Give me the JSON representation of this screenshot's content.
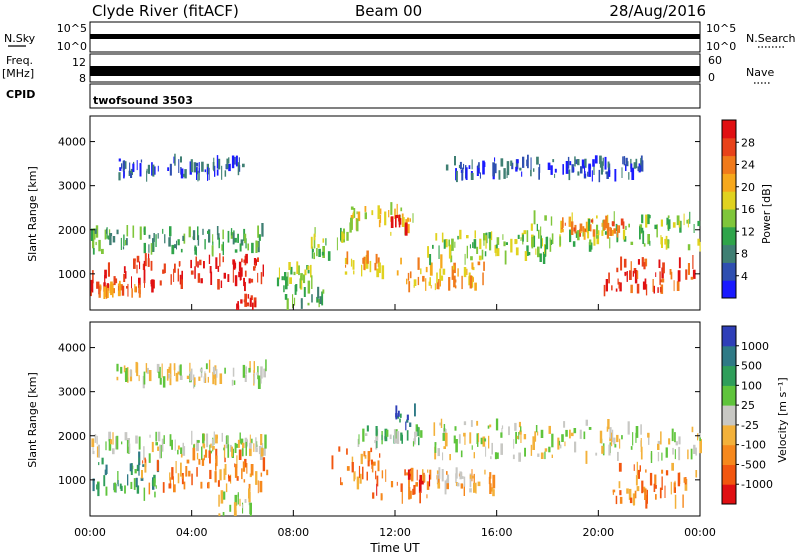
{
  "header": {
    "station": "Clyde River (fitACF)",
    "beam": "Beam 00",
    "date": "28/Aug/2016"
  },
  "panels": {
    "nsky": {
      "label": "N.Sky",
      "ticks": [
        "10^5",
        "10^0"
      ],
      "right_label": "N.Search",
      "right_ticks": [
        "10^5",
        "10^0"
      ]
    },
    "freq": {
      "label_top": "Freq.",
      "label_bottom": "[MHz]",
      "ticks": [
        "12",
        "8"
      ],
      "right_label": "Nave",
      "right_ticks": [
        "60",
        "0"
      ]
    },
    "cpid": {
      "label": "CPID",
      "mode": "twofsound 3503"
    }
  },
  "chart_data": [
    {
      "type": "heatmap",
      "name": "power",
      "ylabel": "Slant Range [km]",
      "yticks": [
        1000,
        2000,
        3000,
        4000
      ],
      "ylim": [
        180,
        4580
      ],
      "xlim_hours": [
        0,
        24
      ],
      "colorbar": {
        "title": "Power [dB]",
        "ticks": [
          "4",
          "8",
          "12",
          "16",
          "20",
          "24",
          "28"
        ],
        "colors": [
          "#1a1aff",
          "#2f4fb0",
          "#3f7f73",
          "#2fa44a",
          "#7fc63a",
          "#e0d21f",
          "#f6a81c",
          "#f07a1b",
          "#e8421a",
          "#e00f12"
        ]
      },
      "bands": [
        {
          "t0": 0.0,
          "t1": 6.8,
          "r0": 1500,
          "r1": 2000,
          "level": 3
        },
        {
          "t0": 0.0,
          "t1": 6.8,
          "r0": 700,
          "r1": 1350,
          "level": 9
        },
        {
          "t0": 0.0,
          "t1": 2.0,
          "r0": 550,
          "r1": 700,
          "level": 7
        },
        {
          "t0": 7.2,
          "t1": 8.8,
          "r0": 800,
          "r1": 1200,
          "level": 4
        },
        {
          "t0": 7.6,
          "t1": 9.2,
          "r0": 300,
          "r1": 800,
          "level": 3
        },
        {
          "t0": 8.6,
          "t1": 10.2,
          "r0": 1400,
          "r1": 2000,
          "level": 4
        },
        {
          "t0": 10.2,
          "t1": 12.8,
          "r0": 1900,
          "r1": 2500,
          "level": 5
        },
        {
          "t0": 11.8,
          "t1": 12.4,
          "r0": 2000,
          "r1": 2300,
          "level": 9
        },
        {
          "t0": 10.0,
          "t1": 11.5,
          "r0": 1000,
          "r1": 1400,
          "level": 6
        },
        {
          "t0": 12.0,
          "t1": 15.5,
          "r0": 700,
          "r1": 1300,
          "level": 6
        },
        {
          "t0": 13.2,
          "t1": 18.0,
          "r0": 1300,
          "r1": 1900,
          "level": 4
        },
        {
          "t0": 17.0,
          "t1": 24.0,
          "r0": 1600,
          "r1": 2300,
          "level": 4
        },
        {
          "t0": 18.5,
          "t1": 21.0,
          "r0": 1900,
          "r1": 2200,
          "level": 7
        },
        {
          "t0": 20.2,
          "t1": 24.0,
          "r0": 600,
          "r1": 1300,
          "level": 8
        },
        {
          "t0": 5.6,
          "t1": 6.6,
          "r0": 180,
          "r1": 500,
          "level": 9
        },
        {
          "t0": 1.0,
          "t1": 6.0,
          "r0": 3200,
          "r1": 3600,
          "level": 1
        },
        {
          "t0": 14.0,
          "t1": 22.0,
          "r0": 3200,
          "r1": 3600,
          "level": 1
        }
      ]
    },
    {
      "type": "heatmap",
      "name": "velocity",
      "ylabel": "Slant Range [km]",
      "yticks": [
        1000,
        2000,
        3000,
        4000
      ],
      "ylim": [
        180,
        4580
      ],
      "xlim_hours": [
        0,
        24
      ],
      "xlabel": "Time UT",
      "xticks": [
        "00:00",
        "04:00",
        "08:00",
        "12:00",
        "16:00",
        "20:00",
        "00:00"
      ],
      "colorbar": {
        "title": "Velocity [m s⁻¹]",
        "ticks": [
          "-1000",
          "-500",
          "-100",
          "-25",
          "25",
          "100",
          "500",
          "1000"
        ],
        "colors": [
          "#e00f12",
          "#f2560f",
          "#f6881c",
          "#f3b13a",
          "#c8c8c4",
          "#5fc43c",
          "#2f9e5a",
          "#2f7a86",
          "#2f3fb8"
        ]
      },
      "bands": [
        {
          "t0": 0.0,
          "t1": 7.0,
          "r0": 1600,
          "r1": 2000,
          "level": 4
        },
        {
          "t0": 0.0,
          "t1": 3.0,
          "r0": 650,
          "r1": 1500,
          "level": 6
        },
        {
          "t0": 2.0,
          "t1": 7.0,
          "r0": 800,
          "r1": 1600,
          "level": 2
        },
        {
          "t0": 9.5,
          "t1": 11.5,
          "r0": 900,
          "r1": 1700,
          "level": 2
        },
        {
          "t0": 11.0,
          "t1": 13.5,
          "r0": 600,
          "r1": 1200,
          "level": 1
        },
        {
          "t0": 12.0,
          "t1": 12.8,
          "r0": 2200,
          "r1": 2600,
          "level": 7
        },
        {
          "t0": 10.5,
          "t1": 13.0,
          "r0": 1800,
          "r1": 2200,
          "level": 5
        },
        {
          "t0": 13.0,
          "t1": 16.0,
          "r0": 700,
          "r1": 1200,
          "level": 3
        },
        {
          "t0": 13.5,
          "t1": 24.0,
          "r0": 1500,
          "r1": 2300,
          "level": 4
        },
        {
          "t0": 20.5,
          "t1": 24.0,
          "r0": 500,
          "r1": 1300,
          "level": 2
        },
        {
          "t0": 5.0,
          "t1": 6.5,
          "r0": 180,
          "r1": 700,
          "level": 4
        },
        {
          "t0": 1.0,
          "t1": 7.0,
          "r0": 3200,
          "r1": 3600,
          "level": 4
        }
      ]
    }
  ]
}
